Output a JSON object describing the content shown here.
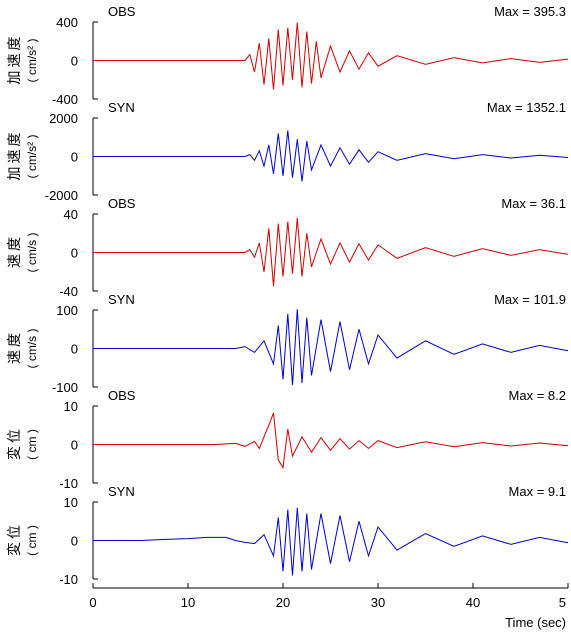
{
  "figure": {
    "xlabel": "Time (sec)",
    "xlim": [
      0,
      50
    ],
    "x_ticks": [
      "0",
      "10",
      "20",
      "30",
      "40",
      "5"
    ]
  },
  "chart_data": [
    {
      "type": "line",
      "tag": "OBS",
      "max_label": "Max = 395.3",
      "ylabel_jp": [
        "加",
        "速",
        "度"
      ],
      "ylabel_unit": "( cm/s² )",
      "ylim": [
        -400,
        400
      ],
      "y_ticks": [
        400,
        0,
        -400
      ],
      "color": "#cc0000",
      "series": [
        {
          "x": [
            0,
            16,
            16.5,
            17,
            17.5,
            18,
            18.5,
            19,
            19.5,
            20,
            20.5,
            21,
            21.5,
            22,
            22.5,
            23,
            23.5,
            24,
            25,
            26,
            27,
            28,
            29,
            30,
            32,
            35,
            38,
            41,
            44,
            47,
            50
          ],
          "values": [
            0,
            0,
            60,
            -120,
            180,
            -250,
            230,
            -300,
            320,
            -260,
            340,
            -200,
            395,
            -280,
            300,
            -240,
            200,
            -180,
            150,
            -120,
            100,
            -90,
            80,
            -60,
            50,
            -40,
            30,
            -25,
            20,
            -20,
            15
          ]
        }
      ]
    },
    {
      "type": "line",
      "tag": "SYN",
      "max_label": "Max = 1352.1",
      "ylabel_jp": [
        "加",
        "速",
        "度"
      ],
      "ylabel_unit": "( cm/s² )",
      "ylim": [
        -2000,
        2000
      ],
      "y_ticks": [
        2000,
        0,
        -2000
      ],
      "color": "#0000cc",
      "series": [
        {
          "x": [
            0,
            16,
            16.5,
            17,
            17.5,
            18,
            18.5,
            19,
            19.5,
            20,
            20.5,
            21,
            21.5,
            22,
            22.5,
            23,
            24,
            25,
            26,
            27,
            28,
            29,
            30,
            32,
            35,
            38,
            41,
            44,
            47,
            50
          ],
          "values": [
            0,
            0,
            100,
            -200,
            300,
            -500,
            600,
            -900,
            1200,
            -1000,
            1352,
            -1100,
            900,
            -1300,
            800,
            -700,
            600,
            -500,
            450,
            -400,
            350,
            -300,
            250,
            -200,
            150,
            -120,
            100,
            -80,
            60,
            -50
          ]
        }
      ]
    },
    {
      "type": "line",
      "tag": "OBS",
      "max_label": "Max = 36.1",
      "ylabel_jp": [
        "速",
        "度"
      ],
      "ylabel_unit": "( cm/s )",
      "ylim": [
        -40,
        40
      ],
      "y_ticks": [
        40,
        0,
        -40
      ],
      "color": "#cc0000",
      "series": [
        {
          "x": [
            0,
            16,
            16.5,
            17,
            17.5,
            18,
            18.5,
            19,
            19.5,
            20,
            20.5,
            21,
            21.5,
            22,
            22.5,
            23,
            24,
            25,
            26,
            27,
            28,
            29,
            30,
            32,
            35,
            38,
            41,
            44,
            47,
            50
          ],
          "values": [
            0,
            0,
            3,
            -5,
            10,
            -20,
            25,
            -35,
            30,
            -25,
            32,
            -22,
            36,
            -25,
            20,
            -15,
            14,
            -12,
            10,
            -10,
            9,
            -8,
            8,
            -6,
            5,
            -4,
            4,
            -3,
            3,
            -2
          ]
        }
      ]
    },
    {
      "type": "line",
      "tag": "SYN",
      "max_label": "Max = 101.9",
      "ylabel_jp": [
        "速",
        "度"
      ],
      "ylabel_unit": "( cm/s )",
      "ylim": [
        -100,
        100
      ],
      "y_ticks": [
        100,
        0,
        -100
      ],
      "color": "#0000cc",
      "series": [
        {
          "x": [
            0,
            15,
            16,
            17,
            18,
            19,
            19.5,
            20,
            20.5,
            21,
            21.5,
            22,
            22.5,
            23,
            24,
            25,
            26,
            27,
            28,
            29,
            30,
            32,
            35,
            38,
            41,
            44,
            47,
            50
          ],
          "values": [
            0,
            0,
            5,
            -10,
            20,
            -40,
            60,
            -80,
            90,
            -95,
            101.9,
            -90,
            80,
            -70,
            75,
            -60,
            70,
            -55,
            50,
            -40,
            35,
            -25,
            20,
            -15,
            12,
            -10,
            8,
            -6
          ]
        }
      ]
    },
    {
      "type": "line",
      "tag": "OBS",
      "max_label": "Max = 8.2",
      "ylabel_jp": [
        "変",
        "位"
      ],
      "ylabel_unit": "( cm )",
      "ylim": [
        -10,
        10
      ],
      "y_ticks": [
        10,
        0,
        -10
      ],
      "color": "#cc0000",
      "series": [
        {
          "x": [
            0,
            13,
            15,
            16,
            17,
            17.5,
            18,
            18.5,
            19,
            19.5,
            20,
            20.5,
            21,
            22,
            23,
            24,
            25,
            26,
            27,
            28,
            29,
            30,
            32,
            35,
            38,
            41,
            44,
            47,
            50
          ],
          "values": [
            0,
            0,
            0.3,
            -0.5,
            0.8,
            -1,
            2,
            5,
            8.2,
            -4,
            -6,
            4,
            -3,
            2,
            -2,
            1.8,
            -1.5,
            1.5,
            -1.2,
            1,
            -1,
            1,
            -0.8,
            0.7,
            -0.6,
            0.5,
            -0.4,
            0.4,
            -0.3
          ]
        }
      ]
    },
    {
      "type": "line",
      "tag": "SYN",
      "max_label": "Max = 9.1",
      "ylabel_jp": [
        "変",
        "位"
      ],
      "ylabel_unit": "( cm )",
      "ylim": [
        -10,
        10
      ],
      "y_ticks": [
        10,
        0,
        -10
      ],
      "color": "#0000cc",
      "series": [
        {
          "x": [
            0,
            5,
            8,
            10,
            12,
            14,
            15,
            16,
            17,
            18,
            19,
            19.5,
            20,
            20.5,
            21,
            21.5,
            22,
            22.5,
            23,
            24,
            25,
            26,
            27,
            28,
            29,
            30,
            32,
            35,
            38,
            41,
            44,
            47,
            50
          ],
          "values": [
            0,
            0,
            0.3,
            0.5,
            0.8,
            0.8,
            0,
            -0.5,
            -0.8,
            1.5,
            -4,
            6,
            -8,
            8,
            -9.1,
            8.5,
            -8,
            7,
            -7.5,
            7,
            -6,
            6.5,
            -5.5,
            5,
            -4,
            3.5,
            -2.5,
            1.8,
            -1.5,
            1.2,
            -1,
            0.8,
            -0.6
          ]
        }
      ]
    }
  ]
}
